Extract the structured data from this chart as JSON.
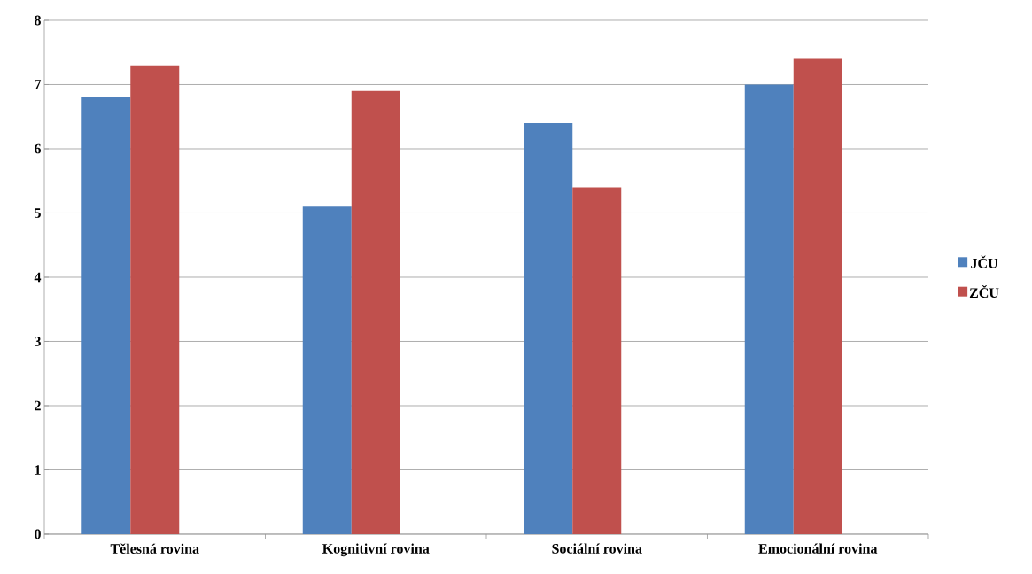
{
  "chart_data": {
    "type": "bar",
    "categories": [
      "Tělesná rovina",
      "Kognitivní rovina",
      "Sociální rovina",
      "Emocionální rovina"
    ],
    "series": [
      {
        "name": "JČU",
        "color": "#4f81bd",
        "values": [
          6.8,
          5.1,
          6.4,
          7.0
        ]
      },
      {
        "name": "ZČU",
        "color": "#c0504d",
        "values": [
          7.3,
          6.9,
          5.4,
          7.4
        ]
      }
    ],
    "ylim": [
      0,
      8
    ],
    "yticks": [
      0,
      1,
      2,
      3,
      4,
      5,
      6,
      7,
      8
    ],
    "grid": "y",
    "legend": "right"
  }
}
